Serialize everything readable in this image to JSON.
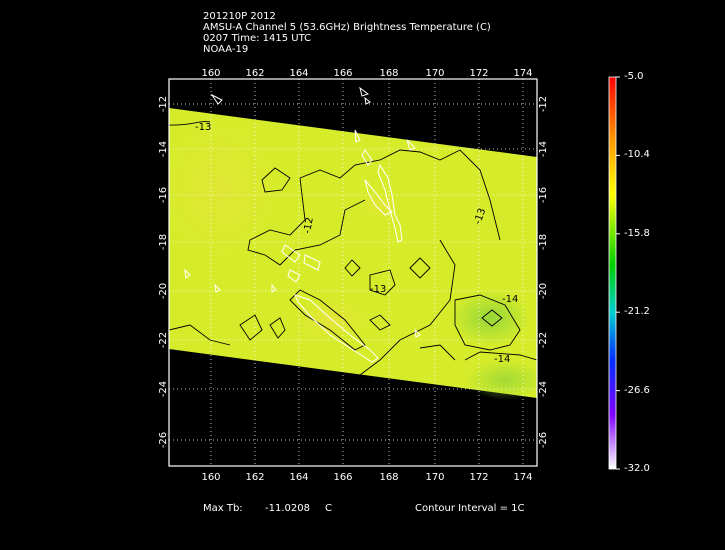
{
  "header": {
    "line1": "201210P 2012",
    "line2": "AMSU-A Channel 5 (53.6GHz) Brightness Temperature (C)",
    "line3": "0207 Time: 1415 UTC",
    "line4": "NOAA-19"
  },
  "map": {
    "lon_ticks": [
      "160",
      "162",
      "164",
      "166",
      "168",
      "170",
      "172",
      "174"
    ],
    "lat_ticks": [
      "-12",
      "-14",
      "-16",
      "-18",
      "-20",
      "-22",
      "-24",
      "-26"
    ],
    "contour_labels": [
      "-13",
      "-12",
      "-13",
      "-13",
      "-14",
      "-14"
    ],
    "swath_color": "#d6ec2a",
    "warm_color": "#ece040",
    "cool_color": "#9ad838"
  },
  "colorbar": {
    "labels": [
      "-5.0",
      "-10.4",
      "-15.8",
      "-21.2",
      "-26.6",
      "-32.0"
    ],
    "colors": [
      "#ff0000",
      "#ff8c00",
      "#ffff00",
      "#00cc00",
      "#00cccc",
      "#0000ff",
      "#8000ff",
      "#ffffff"
    ]
  },
  "footer": {
    "max_tb_label": "Max Tb:",
    "max_tb_value": "-11.0208",
    "max_tb_unit": "C",
    "contour_interval": "Contour Interval = 1C"
  }
}
